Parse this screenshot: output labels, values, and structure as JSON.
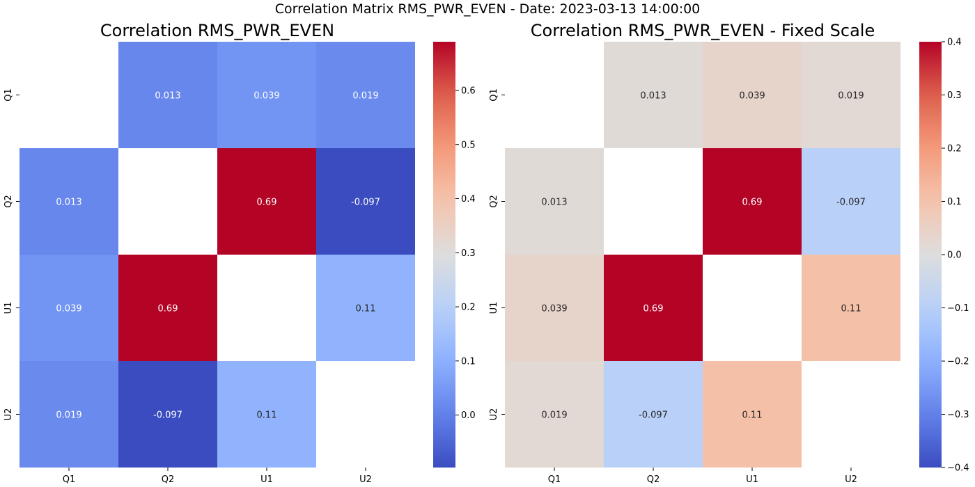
{
  "figure": {
    "title": "Correlation Matrix RMS_PWR_EVEN - Date: 2023-03-13 14:00:00"
  },
  "chart_data": [
    {
      "type": "heatmap",
      "title": "Correlation RMS_PWR_EVEN",
      "colormap": "coolwarm",
      "x_labels": [
        "Q1",
        "Q2",
        "U1",
        "U2"
      ],
      "y_labels": [
        "Q1",
        "Q2",
        "U1",
        "U2"
      ],
      "matrix": [
        [
          null,
          0.013,
          0.039,
          0.019
        ],
        [
          0.013,
          null,
          0.69,
          -0.097
        ],
        [
          0.039,
          0.69,
          null,
          0.11
        ],
        [
          0.019,
          -0.097,
          0.11,
          null
        ]
      ],
      "annotations": [
        [
          null,
          "0.013",
          "0.039",
          "0.019"
        ],
        [
          "0.013",
          null,
          "0.69",
          "-0.097"
        ],
        [
          "0.039",
          "0.69",
          null,
          "0.11"
        ],
        [
          "0.019",
          "-0.097",
          "0.11",
          null
        ]
      ],
      "colorbar": {
        "vmin": -0.097,
        "vmax": 0.69,
        "ticks": [
          0.0,
          0.1,
          0.2,
          0.3,
          0.4,
          0.5,
          0.6
        ],
        "tick_labels": [
          "0.0",
          "0.1",
          "0.2",
          "0.3",
          "0.4",
          "0.5",
          "0.6"
        ]
      }
    },
    {
      "type": "heatmap",
      "title": "Correlation RMS_PWR_EVEN - Fixed Scale",
      "colormap": "coolwarm",
      "x_labels": [
        "Q1",
        "Q2",
        "U1",
        "U2"
      ],
      "y_labels": [
        "Q1",
        "Q2",
        "U1",
        "U2"
      ],
      "matrix": [
        [
          null,
          0.013,
          0.039,
          0.019
        ],
        [
          0.013,
          null,
          0.69,
          -0.097
        ],
        [
          0.039,
          0.69,
          null,
          0.11
        ],
        [
          0.019,
          -0.097,
          0.11,
          null
        ]
      ],
      "annotations": [
        [
          null,
          "0.013",
          "0.039",
          "0.019"
        ],
        [
          "0.013",
          null,
          "0.69",
          "-0.097"
        ],
        [
          "0.039",
          "0.69",
          null,
          "0.11"
        ],
        [
          "0.019",
          "-0.097",
          "0.11",
          null
        ]
      ],
      "colorbar": {
        "vmin": -0.4,
        "vmax": 0.4,
        "ticks": [
          -0.4,
          -0.3,
          -0.2,
          -0.1,
          0.0,
          0.1,
          0.2,
          0.3,
          0.4
        ],
        "tick_labels": [
          "−0.4",
          "−0.3",
          "−0.2",
          "−0.1",
          "0.0",
          "0.1",
          "0.2",
          "0.3",
          "0.4"
        ]
      }
    }
  ]
}
